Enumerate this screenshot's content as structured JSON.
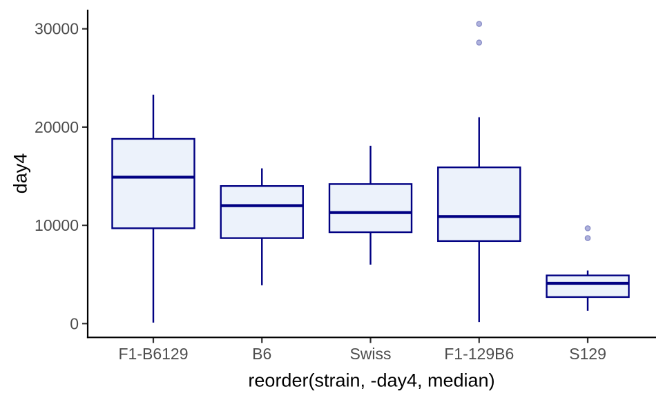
{
  "figure": {
    "ylabel": "day4",
    "xlabel": "reorder(strain, -day4, median)"
  },
  "chart_data": {
    "type": "boxplot",
    "title": "",
    "xlabel": "reorder(strain, -day4, median)",
    "ylabel": "day4",
    "categories": [
      "F1-B6129",
      "B6",
      "Swiss",
      "F1-129B6",
      "S129"
    ],
    "series": [
      {
        "name": "F1-B6129",
        "whisker_min": 100,
        "q1": 9700,
        "median": 14900,
        "q3": 18800,
        "whisker_max": 23300,
        "outliers": []
      },
      {
        "name": "B6",
        "whisker_min": 3900,
        "q1": 8700,
        "median": 12000,
        "q3": 14000,
        "whisker_max": 15800,
        "outliers": []
      },
      {
        "name": "Swiss",
        "whisker_min": 6000,
        "q1": 9300,
        "median": 11300,
        "q3": 14200,
        "whisker_max": 18100,
        "outliers": []
      },
      {
        "name": "F1-129B6",
        "whisker_min": 150,
        "q1": 8400,
        "median": 10900,
        "q3": 15900,
        "whisker_max": 21000,
        "outliers": [
          28600,
          30500
        ]
      },
      {
        "name": "S129",
        "whisker_min": 1300,
        "q1": 2700,
        "median": 4100,
        "q3": 4900,
        "whisker_max": 5400,
        "outliers": [
          8700,
          9700
        ]
      }
    ],
    "ylim": [
      0,
      30000
    ],
    "yticks": [
      0,
      10000,
      20000,
      30000
    ],
    "grid": false,
    "legend": false,
    "style": {
      "box_fill": "#ECF2FB",
      "box_stroke": "#000082",
      "median_stroke": "#000082",
      "whisker_stroke": "#000082",
      "outlier_fill": "#AFB2DD",
      "outlier_stroke": "#8B8FC8",
      "axis_color": "#000000",
      "tick_color": "#333333",
      "tick_label_color": "#4D4D4D",
      "background": "#FFFFFF"
    }
  }
}
